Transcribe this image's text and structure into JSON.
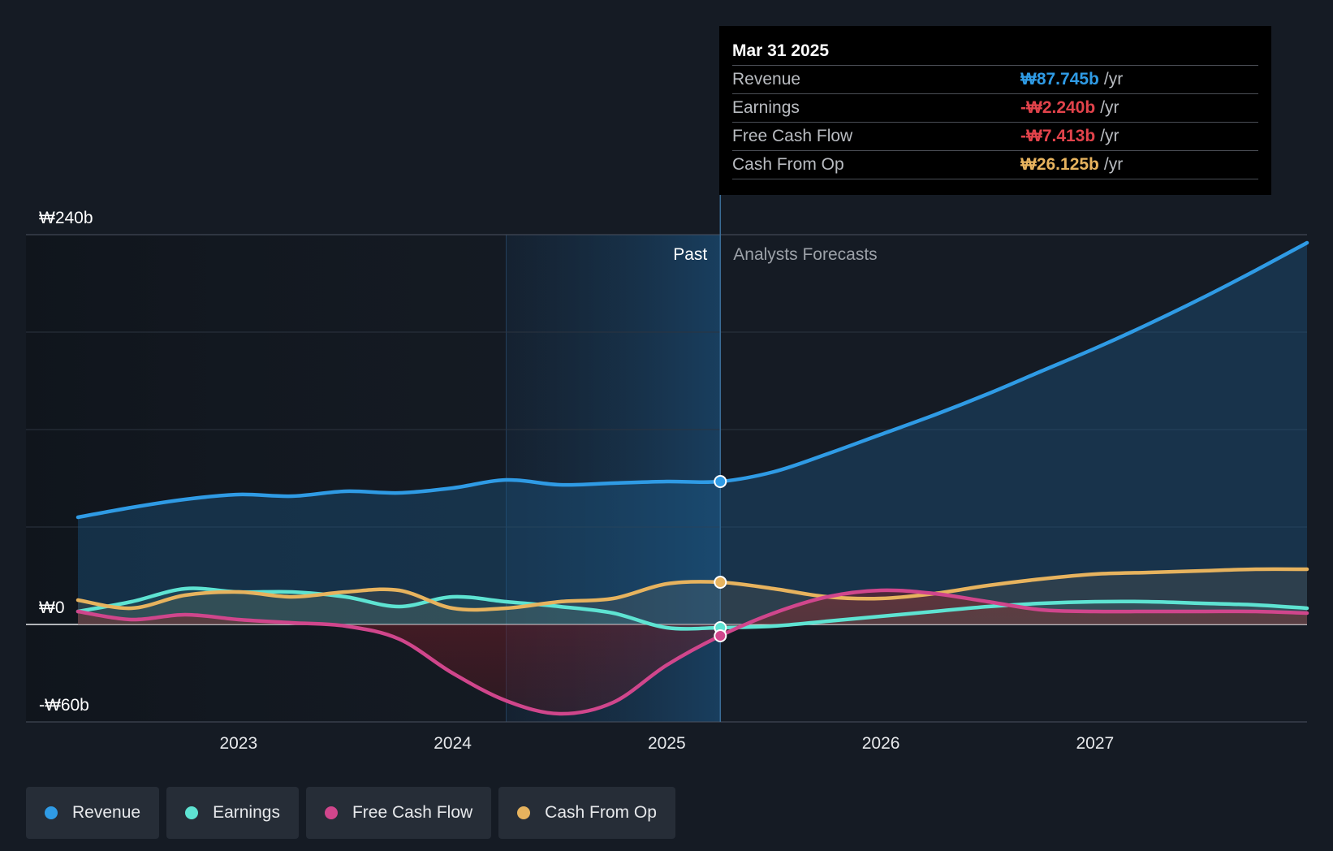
{
  "chart_data": {
    "type": "line",
    "currency_unit": "₩",
    "y_ticks": [
      {
        "label": "₩240b",
        "value": 240
      },
      {
        "label": "₩0",
        "value": 0
      },
      {
        "label": "-₩60b",
        "value": -60
      }
    ],
    "ylim": [
      -60,
      240
    ],
    "xlim": [
      2022.25,
      2027.99
    ],
    "x_ticks": [
      {
        "label": "2023",
        "value": 2023
      },
      {
        "label": "2024",
        "value": 2024
      },
      {
        "label": "2025",
        "value": 2025
      },
      {
        "label": "2026",
        "value": 2026
      },
      {
        "label": "2027",
        "value": 2027
      }
    ],
    "past_label": "Past",
    "forecast_label": "Analysts Forecasts",
    "past_highlight_start": 2024.25,
    "divider_x": 2025.25,
    "series": [
      {
        "name": "Revenue",
        "color": "#2f9be5",
        "x": [
          2022.25,
          2022.5,
          2022.75,
          2023.0,
          2023.25,
          2023.5,
          2023.75,
          2024.0,
          2024.25,
          2024.5,
          2024.75,
          2025.0,
          2025.25,
          2025.5,
          2025.75,
          2026.0,
          2026.25,
          2026.5,
          2026.75,
          2027.0,
          2027.25,
          2027.5,
          2027.75,
          2027.99
        ],
        "y": [
          66,
          72,
          77,
          80,
          79,
          82,
          81,
          84,
          89,
          86,
          87,
          88,
          88,
          94,
          105,
          117,
          129,
          142,
          156,
          170,
          185,
          201,
          218,
          235
        ]
      },
      {
        "name": "Earnings",
        "color": "#5ee3d2",
        "x": [
          2022.25,
          2022.5,
          2022.75,
          2023.0,
          2023.25,
          2023.5,
          2023.75,
          2024.0,
          2024.25,
          2024.5,
          2024.75,
          2025.0,
          2025.25,
          2025.5,
          2025.75,
          2026.0,
          2026.25,
          2026.5,
          2026.75,
          2027.0,
          2027.25,
          2027.5,
          2027.75,
          2027.99
        ],
        "y": [
          8,
          14,
          22,
          20,
          20,
          17,
          11,
          17,
          14,
          11,
          7,
          -2,
          -2,
          -1,
          2,
          5,
          8,
          11,
          13,
          14,
          14,
          13,
          12,
          10
        ]
      },
      {
        "name": "Free Cash Flow",
        "color": "#d0468c",
        "x": [
          2022.25,
          2022.5,
          2022.75,
          2023.0,
          2023.25,
          2023.5,
          2023.75,
          2024.0,
          2024.25,
          2024.5,
          2024.75,
          2025.0,
          2025.25,
          2025.5,
          2025.75,
          2026.0,
          2026.25,
          2026.5,
          2026.75,
          2027.0,
          2027.25,
          2027.5,
          2027.75,
          2027.99
        ],
        "y": [
          8,
          3,
          6,
          3,
          1,
          -1,
          -9,
          -30,
          -47,
          -55,
          -48,
          -25,
          -7,
          7,
          17,
          21,
          19,
          14,
          9,
          8,
          8,
          8,
          8,
          7
        ]
      },
      {
        "name": "Cash From Op",
        "color": "#e7b35e",
        "x": [
          2022.25,
          2022.5,
          2022.75,
          2023.0,
          2023.25,
          2023.5,
          2023.75,
          2024.0,
          2024.25,
          2024.5,
          2024.75,
          2025.0,
          2025.25,
          2025.5,
          2025.75,
          2026.0,
          2026.25,
          2026.5,
          2026.75,
          2027.0,
          2027.25,
          2027.5,
          2027.75,
          2027.99
        ],
        "y": [
          15,
          10,
          18,
          20,
          17,
          20,
          21,
          10,
          10,
          14,
          16,
          25,
          26,
          22,
          17,
          16,
          19,
          24,
          28,
          31,
          32,
          33,
          34,
          34
        ]
      }
    ]
  },
  "tooltip": {
    "date": "Mar 31 2025",
    "unit": "/yr",
    "rows": [
      {
        "label": "Revenue",
        "value": "₩87.745b",
        "color": "#2f9be5"
      },
      {
        "label": "Earnings",
        "value": "-₩2.240b",
        "color": "#e2434b"
      },
      {
        "label": "Free Cash Flow",
        "value": "-₩7.413b",
        "color": "#e2434b"
      },
      {
        "label": "Cash From Op",
        "value": "₩26.125b",
        "color": "#e7b35e"
      }
    ]
  },
  "legend": [
    {
      "label": "Revenue",
      "color": "#2f9be5"
    },
    {
      "label": "Earnings",
      "color": "#5ee3d2"
    },
    {
      "label": "Free Cash Flow",
      "color": "#d0468c"
    },
    {
      "label": "Cash From Op",
      "color": "#e7b35e"
    }
  ]
}
